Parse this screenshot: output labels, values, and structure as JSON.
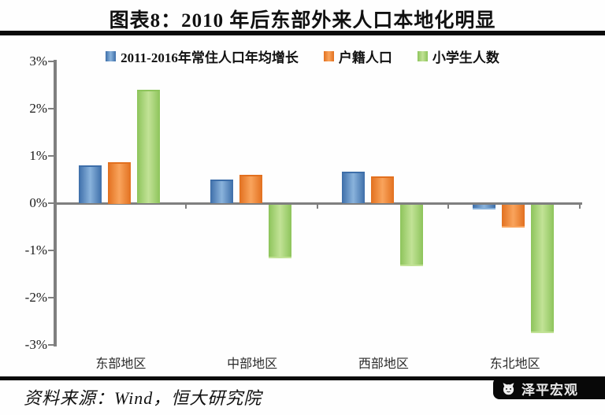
{
  "title": "图表8：2010 年后东部外来人口本地化明显",
  "footer": {
    "source": "资料来源：Wind，恒大研究院",
    "badge": "泽平宏观"
  },
  "colors": {
    "axis": "#7f7f7f",
    "rule": "#0a0a0a",
    "badge_bg": "#080808",
    "badge_text": "#e8e8e8"
  },
  "chart_data": {
    "type": "bar",
    "title": "图表8：2010 年后东部外来人口本地化明显",
    "categories": [
      "东部地区",
      "中部地区",
      "西部地区",
      "东北地区"
    ],
    "series": [
      {
        "name": "2011-2016年常住人口年均增长",
        "color": "#3d6ea9",
        "color_light": "#8ab3dc",
        "legend_color": "#4a7ebb",
        "values": [
          0.77,
          0.47,
          0.64,
          -0.08
        ]
      },
      {
        "name": "户籍人口",
        "color": "#e2701f",
        "color_light": "#f9a45c",
        "legend_color": "#ed7c31",
        "values": [
          0.85,
          0.57,
          0.54,
          -0.45
        ]
      },
      {
        "name": "小学生人数",
        "color": "#8dc45b",
        "color_light": "#c2e296",
        "legend_color": "#9dcd65",
        "values": [
          2.38,
          -1.11,
          -1.28,
          -2.69
        ]
      }
    ],
    "ylabel": "",
    "xlabel": "",
    "ylim": [
      -3,
      3
    ],
    "yticks": [
      "3%",
      "2%",
      "1%",
      "0%",
      "-1%",
      "-2%",
      "-3%"
    ],
    "ytick_values": [
      3,
      2,
      1,
      0,
      -1,
      -2,
      -3
    ],
    "legend_position": "top",
    "grid": false
  }
}
